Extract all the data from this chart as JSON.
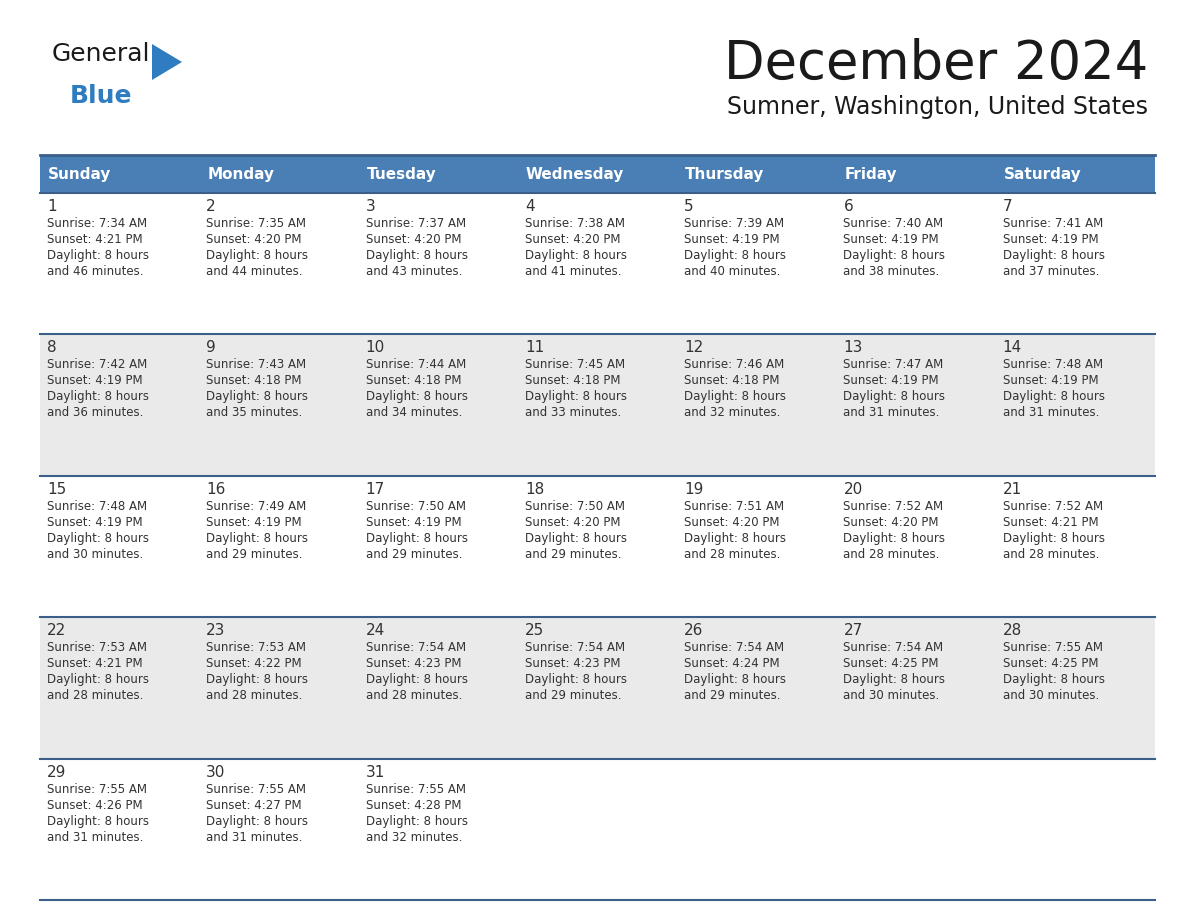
{
  "title": "December 2024",
  "subtitle": "Sumner, Washington, United States",
  "header_color": "#4a7fb5",
  "header_text_color": "#ffffff",
  "row_bg_even": "#ffffff",
  "row_bg_odd": "#eaeaea",
  "separator_color": "#3a5f8a",
  "day_headers": [
    "Sunday",
    "Monday",
    "Tuesday",
    "Wednesday",
    "Thursday",
    "Friday",
    "Saturday"
  ],
  "days": [
    {
      "day": 1,
      "col": 0,
      "row": 0,
      "sunrise": "7:34 AM",
      "sunset": "4:21 PM",
      "daylight_h": "8 hours",
      "daylight_m": "and 46 minutes."
    },
    {
      "day": 2,
      "col": 1,
      "row": 0,
      "sunrise": "7:35 AM",
      "sunset": "4:20 PM",
      "daylight_h": "8 hours",
      "daylight_m": "and 44 minutes."
    },
    {
      "day": 3,
      "col": 2,
      "row": 0,
      "sunrise": "7:37 AM",
      "sunset": "4:20 PM",
      "daylight_h": "8 hours",
      "daylight_m": "and 43 minutes."
    },
    {
      "day": 4,
      "col": 3,
      "row": 0,
      "sunrise": "7:38 AM",
      "sunset": "4:20 PM",
      "daylight_h": "8 hours",
      "daylight_m": "and 41 minutes."
    },
    {
      "day": 5,
      "col": 4,
      "row": 0,
      "sunrise": "7:39 AM",
      "sunset": "4:19 PM",
      "daylight_h": "8 hours",
      "daylight_m": "and 40 minutes."
    },
    {
      "day": 6,
      "col": 5,
      "row": 0,
      "sunrise": "7:40 AM",
      "sunset": "4:19 PM",
      "daylight_h": "8 hours",
      "daylight_m": "and 38 minutes."
    },
    {
      "day": 7,
      "col": 6,
      "row": 0,
      "sunrise": "7:41 AM",
      "sunset": "4:19 PM",
      "daylight_h": "8 hours",
      "daylight_m": "and 37 minutes."
    },
    {
      "day": 8,
      "col": 0,
      "row": 1,
      "sunrise": "7:42 AM",
      "sunset": "4:19 PM",
      "daylight_h": "8 hours",
      "daylight_m": "and 36 minutes."
    },
    {
      "day": 9,
      "col": 1,
      "row": 1,
      "sunrise": "7:43 AM",
      "sunset": "4:18 PM",
      "daylight_h": "8 hours",
      "daylight_m": "and 35 minutes."
    },
    {
      "day": 10,
      "col": 2,
      "row": 1,
      "sunrise": "7:44 AM",
      "sunset": "4:18 PM",
      "daylight_h": "8 hours",
      "daylight_m": "and 34 minutes."
    },
    {
      "day": 11,
      "col": 3,
      "row": 1,
      "sunrise": "7:45 AM",
      "sunset": "4:18 PM",
      "daylight_h": "8 hours",
      "daylight_m": "and 33 minutes."
    },
    {
      "day": 12,
      "col": 4,
      "row": 1,
      "sunrise": "7:46 AM",
      "sunset": "4:18 PM",
      "daylight_h": "8 hours",
      "daylight_m": "and 32 minutes."
    },
    {
      "day": 13,
      "col": 5,
      "row": 1,
      "sunrise": "7:47 AM",
      "sunset": "4:19 PM",
      "daylight_h": "8 hours",
      "daylight_m": "and 31 minutes."
    },
    {
      "day": 14,
      "col": 6,
      "row": 1,
      "sunrise": "7:48 AM",
      "sunset": "4:19 PM",
      "daylight_h": "8 hours",
      "daylight_m": "and 31 minutes."
    },
    {
      "day": 15,
      "col": 0,
      "row": 2,
      "sunrise": "7:48 AM",
      "sunset": "4:19 PM",
      "daylight_h": "8 hours",
      "daylight_m": "and 30 minutes."
    },
    {
      "day": 16,
      "col": 1,
      "row": 2,
      "sunrise": "7:49 AM",
      "sunset": "4:19 PM",
      "daylight_h": "8 hours",
      "daylight_m": "and 29 minutes."
    },
    {
      "day": 17,
      "col": 2,
      "row": 2,
      "sunrise": "7:50 AM",
      "sunset": "4:19 PM",
      "daylight_h": "8 hours",
      "daylight_m": "and 29 minutes."
    },
    {
      "day": 18,
      "col": 3,
      "row": 2,
      "sunrise": "7:50 AM",
      "sunset": "4:20 PM",
      "daylight_h": "8 hours",
      "daylight_m": "and 29 minutes."
    },
    {
      "day": 19,
      "col": 4,
      "row": 2,
      "sunrise": "7:51 AM",
      "sunset": "4:20 PM",
      "daylight_h": "8 hours",
      "daylight_m": "and 28 minutes."
    },
    {
      "day": 20,
      "col": 5,
      "row": 2,
      "sunrise": "7:52 AM",
      "sunset": "4:20 PM",
      "daylight_h": "8 hours",
      "daylight_m": "and 28 minutes."
    },
    {
      "day": 21,
      "col": 6,
      "row": 2,
      "sunrise": "7:52 AM",
      "sunset": "4:21 PM",
      "daylight_h": "8 hours",
      "daylight_m": "and 28 minutes."
    },
    {
      "day": 22,
      "col": 0,
      "row": 3,
      "sunrise": "7:53 AM",
      "sunset": "4:21 PM",
      "daylight_h": "8 hours",
      "daylight_m": "and 28 minutes."
    },
    {
      "day": 23,
      "col": 1,
      "row": 3,
      "sunrise": "7:53 AM",
      "sunset": "4:22 PM",
      "daylight_h": "8 hours",
      "daylight_m": "and 28 minutes."
    },
    {
      "day": 24,
      "col": 2,
      "row": 3,
      "sunrise": "7:54 AM",
      "sunset": "4:23 PM",
      "daylight_h": "8 hours",
      "daylight_m": "and 28 minutes."
    },
    {
      "day": 25,
      "col": 3,
      "row": 3,
      "sunrise": "7:54 AM",
      "sunset": "4:23 PM",
      "daylight_h": "8 hours",
      "daylight_m": "and 29 minutes."
    },
    {
      "day": 26,
      "col": 4,
      "row": 3,
      "sunrise": "7:54 AM",
      "sunset": "4:24 PM",
      "daylight_h": "8 hours",
      "daylight_m": "and 29 minutes."
    },
    {
      "day": 27,
      "col": 5,
      "row": 3,
      "sunrise": "7:54 AM",
      "sunset": "4:25 PM",
      "daylight_h": "8 hours",
      "daylight_m": "and 30 minutes."
    },
    {
      "day": 28,
      "col": 6,
      "row": 3,
      "sunrise": "7:55 AM",
      "sunset": "4:25 PM",
      "daylight_h": "8 hours",
      "daylight_m": "and 30 minutes."
    },
    {
      "day": 29,
      "col": 0,
      "row": 4,
      "sunrise": "7:55 AM",
      "sunset": "4:26 PM",
      "daylight_h": "8 hours",
      "daylight_m": "and 31 minutes."
    },
    {
      "day": 30,
      "col": 1,
      "row": 4,
      "sunrise": "7:55 AM",
      "sunset": "4:27 PM",
      "daylight_h": "8 hours",
      "daylight_m": "and 31 minutes."
    },
    {
      "day": 31,
      "col": 2,
      "row": 4,
      "sunrise": "7:55 AM",
      "sunset": "4:28 PM",
      "daylight_h": "8 hours",
      "daylight_m": "and 32 minutes."
    }
  ],
  "num_rows": 5,
  "num_cols": 7
}
